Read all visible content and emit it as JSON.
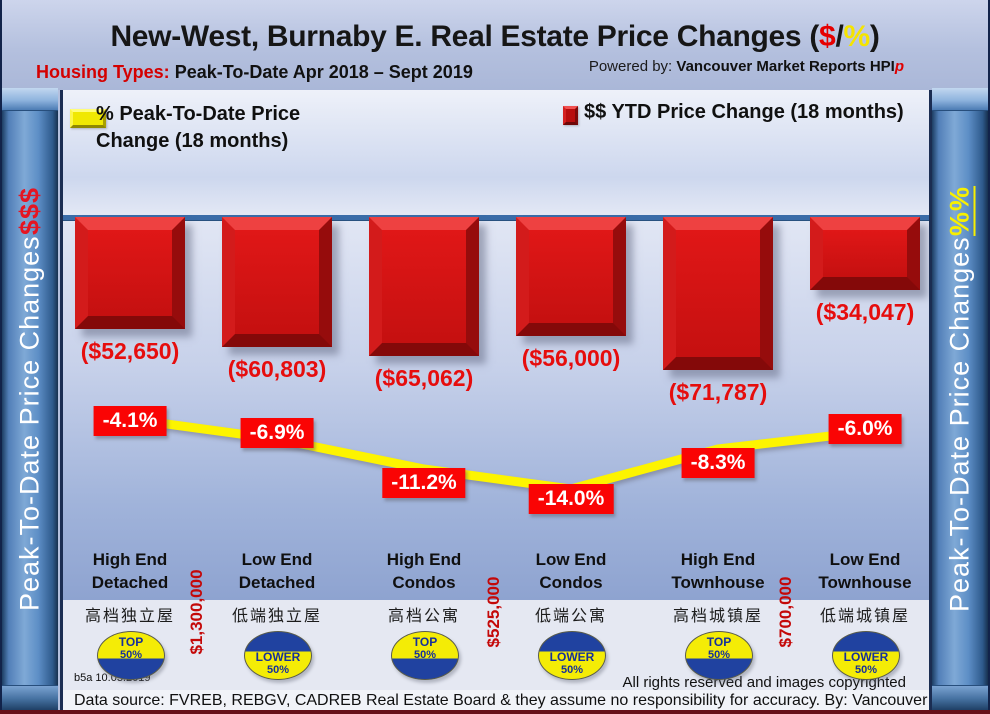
{
  "header": {
    "title_prefix": "New-West, Burnaby E. Real Estate Price Changes (",
    "title_dollar": "$",
    "title_slash": "/",
    "title_percent": "%",
    "title_suffix": ")",
    "housing_types_label": "Housing Types:",
    "subtitle": "Peak-To-Date Apr 2018 – Sept 2019",
    "powered_by_label": "Powered by:",
    "powered_by_brand": "Vancouver Market Reports",
    "powered_by_hpi": "HPI",
    "powered_by_hpi_suffix": "p"
  },
  "legend": {
    "pct_label_line1": "% Peak-To-Date Price",
    "pct_label_line2": "Change (18 months)",
    "dollar_label": "$$ YTD Price Change (18 months)"
  },
  "sidebar_left": {
    "text": "Peak-To-Date Price Changes ",
    "suffix": "$$$"
  },
  "sidebar_right": {
    "text": "Peak-To-Date  Price  Changes ",
    "suffix": "%%"
  },
  "chart_data": {
    "type": "combo",
    "categories": [
      "High End Detached",
      "Low End Detached",
      "High End Condos",
      "Low End Condos",
      "High End Townhouse",
      "Low End Townhouse"
    ],
    "categories_zh": [
      "高档独立屋",
      "低端独立屋",
      "高档公寓",
      "低端公寓",
      "高档城镇屋",
      "低端城镇屋"
    ],
    "series": [
      {
        "name": "$$ YTD Price Change (18 months)",
        "type": "bar",
        "color": "#cf1113",
        "values": [
          -52650,
          -60803,
          -65062,
          -56000,
          -71787,
          -34047
        ],
        "labels": [
          "($52,650)",
          "($60,803)",
          "($65,062)",
          "($56,000)",
          "($71,787)",
          "($34,047)"
        ]
      },
      {
        "name": "% Peak-To-Date Price Change (18 months)",
        "type": "line",
        "color": "#fdf400",
        "values": [
          -4.1,
          -6.9,
          -11.2,
          -14.0,
          -8.3,
          -6.0
        ],
        "labels": [
          "-4.1%",
          "-6.9%",
          "-11.2%",
          "-14.0%",
          "-8.3%",
          "-6.0%"
        ]
      }
    ],
    "benchmark_prices": [
      "$1,300,000",
      "$525,000",
      "$700,000"
    ],
    "badges": [
      "TOP 50%",
      "LOWER 50%",
      "TOP 50%",
      "LOWER 50%",
      "TOP 50%",
      "LOWER 50%"
    ],
    "baseline_value": 0,
    "bar_axis_range": [
      -80000,
      0
    ],
    "line_axis_range": [
      -15,
      0
    ],
    "grid": false,
    "legend_position": "top"
  },
  "footer": {
    "version_note": "b5a 10.03.2019",
    "rights": "All rights reserved and  images copyrighted",
    "datasource": "Data source: FVREB, REBGV, CADREB Real Estate Board & they assume no responsibility for accuracy. By: Vancouver Market Reports"
  },
  "colors": {
    "bar": "#cf1113",
    "line": "#fdf400",
    "label_box": "#fa0404",
    "accent_red": "#d40000",
    "accent_yellow": "#f5e400"
  }
}
